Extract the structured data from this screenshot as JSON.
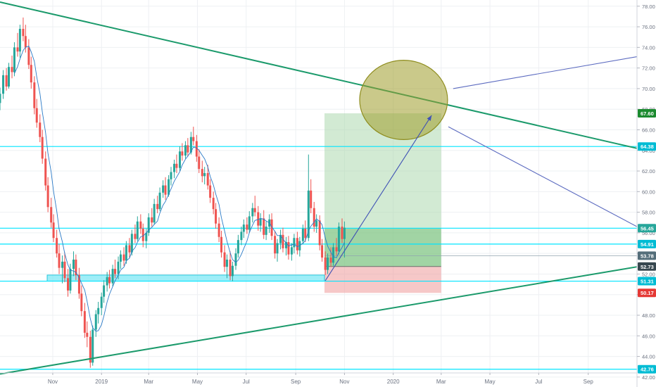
{
  "chart_data": {
    "type": "candlestick",
    "title": "",
    "xlabel": "",
    "ylabel": "",
    "ylim": [
      42.4,
      78.6
    ],
    "grid": true,
    "y_ticks": [
      "78.00",
      "76.00",
      "74.00",
      "72.00",
      "70.00",
      "68.00",
      "66.00",
      "64.00",
      "62.00",
      "60.00",
      "58.00",
      "56.00",
      "54.00",
      "52.00",
      "50.00",
      "48.00",
      "46.00",
      "44.00",
      "42.00"
    ],
    "x_ticks": [
      {
        "label": "Nov",
        "date": "2018-11-01"
      },
      {
        "label": "2019",
        "date": "2019-01-01"
      },
      {
        "label": "Mar",
        "date": "2019-03-01"
      },
      {
        "label": "May",
        "date": "2019-05-01"
      },
      {
        "label": "Jul",
        "date": "2019-07-01"
      },
      {
        "label": "Sep",
        "date": "2019-09-01"
      },
      {
        "label": "Nov",
        "date": "2019-11-01"
      },
      {
        "label": "2020",
        "date": "2020-01-01"
      },
      {
        "label": "Mar",
        "date": "2020-03-01"
      },
      {
        "label": "May",
        "date": "2020-05-01"
      },
      {
        "label": "Jul",
        "date": "2020-07-01"
      },
      {
        "label": "Sep",
        "date": "2020-09-01"
      }
    ],
    "price_labels": [
      {
        "value": 67.6,
        "text": "67.60",
        "color": "#1b8a2f"
      },
      {
        "value": 64.38,
        "text": "64.38",
        "color": "#00bcd4"
      },
      {
        "value": 56.45,
        "text": "56.45",
        "color": "#26a69a"
      },
      {
        "value": 54.91,
        "text": "54.91",
        "color": "#00bcd4"
      },
      {
        "value": 53.78,
        "text": "53.78",
        "color": "#546e7a"
      },
      {
        "value": 52.73,
        "text": "52.73",
        "color": "#37474f"
      },
      {
        "value": 51.31,
        "text": "51.31",
        "color": "#00bcd4"
      },
      {
        "value": 50.17,
        "text": "50.17",
        "color": "#e53935"
      },
      {
        "value": 42.76,
        "text": "42.76",
        "color": "#00bcd4"
      }
    ],
    "horizontal_levels": [
      64.38,
      56.45,
      54.91,
      51.31,
      42.76
    ],
    "long_position": {
      "start_date": "2019-10-07",
      "end_date": "2020-03-01",
      "entry": 52.73,
      "target": 67.6,
      "stop": 50.17,
      "current": 56.45,
      "trace_to": 53.78
    },
    "support_zone": {
      "start_date": "2018-10-25",
      "end_date": "2019-10-07",
      "low": 51.31,
      "high": 51.9
    },
    "trendlines": [
      {
        "name": "",
        "color": "#1b9a6b",
        "points": [
          [
            "2018-08-27",
            78.4
          ],
          [
            "2020-11-01",
            64.2
          ]
        ]
      },
      {
        "name": "",
        "color": "#1b9a6b",
        "points": [
          [
            "2018-08-27",
            42.3
          ],
          [
            "2020-11-01",
            52.7
          ]
        ]
      }
    ],
    "arrow": {
      "from": [
        "2019-10-08",
        51.35
      ],
      "to": [
        "2020-02-18",
        67.4
      ],
      "color": "#3f51b5"
    },
    "ellipse": {
      "center": [
        "2020-01-14",
        68.9
      ],
      "rx_days": 55,
      "ry_value": 3.85,
      "fill": "#9e9c2a",
      "opacity": 0.55
    },
    "projection_lines": [
      {
        "from": [
          "2020-03-16",
          70.0
        ],
        "to": [
          "2020-11-01",
          73.1
        ]
      },
      {
        "from": [
          "2020-03-10",
          66.3
        ],
        "to": [
          "2020-11-01",
          56.6
        ]
      }
    ],
    "colors": {
      "up": "#26a69a",
      "down": "#ef5350",
      "ma": "#2a7ac7",
      "level": "#00e5ff",
      "zone_fill": "#7ee8f5",
      "target_fill": "#a5d6a7",
      "target_inner": "#66bb6a",
      "stop_fill": "#ef9a9a"
    },
    "ohlc": [
      [
        "2018-08-27",
        68.6,
        70.1,
        67.9,
        69.5
      ],
      [
        "2018-08-31",
        69.5,
        71.8,
        69.0,
        71.3
      ],
      [
        "2018-09-04",
        71.3,
        72.0,
        69.8,
        70.2
      ],
      [
        "2018-09-07",
        70.2,
        72.5,
        70.0,
        72.1
      ],
      [
        "2018-09-11",
        72.1,
        73.2,
        71.0,
        71.6
      ],
      [
        "2018-09-14",
        71.6,
        74.5,
        71.2,
        74.0
      ],
      [
        "2018-09-18",
        74.0,
        75.4,
        73.1,
        73.6
      ],
      [
        "2018-09-21",
        73.6,
        76.2,
        73.0,
        75.8
      ],
      [
        "2018-09-25",
        75.8,
        76.9,
        74.6,
        75.1
      ],
      [
        "2018-09-28",
        75.1,
        76.2,
        73.5,
        74.0
      ],
      [
        "2018-10-02",
        74.0,
        74.8,
        71.9,
        72.3
      ],
      [
        "2018-10-05",
        72.3,
        73.1,
        70.0,
        70.6
      ],
      [
        "2018-10-09",
        70.6,
        71.2,
        67.5,
        68.1
      ],
      [
        "2018-10-12",
        68.1,
        69.0,
        66.2,
        66.7
      ],
      [
        "2018-10-16",
        66.7,
        67.5,
        64.8,
        65.3
      ],
      [
        "2018-10-19",
        65.3,
        66.0,
        62.7,
        63.2
      ],
      [
        "2018-10-23",
        63.2,
        63.9,
        60.1,
        60.6
      ],
      [
        "2018-10-26",
        60.6,
        61.4,
        58.0,
        58.5
      ],
      [
        "2018-10-30",
        58.5,
        59.4,
        56.5,
        57.0
      ],
      [
        "2018-11-02",
        57.0,
        57.8,
        55.1,
        55.5
      ],
      [
        "2018-11-06",
        55.5,
        56.3,
        53.6,
        54.0
      ],
      [
        "2018-11-09",
        54.0,
        54.9,
        52.0,
        52.6
      ],
      [
        "2018-11-13",
        52.6,
        53.8,
        51.1,
        53.2
      ],
      [
        "2018-11-16",
        53.2,
        54.1,
        51.2,
        51.6
      ],
      [
        "2018-11-20",
        51.6,
        52.5,
        49.8,
        50.4
      ],
      [
        "2018-11-23",
        50.4,
        53.0,
        50.1,
        52.5
      ],
      [
        "2018-11-27",
        52.5,
        54.2,
        51.8,
        53.4
      ],
      [
        "2018-11-30",
        53.4,
        53.9,
        51.4,
        51.9
      ],
      [
        "2018-12-04",
        51.9,
        52.6,
        49.6,
        50.1
      ],
      [
        "2018-12-07",
        50.1,
        50.9,
        47.9,
        48.4
      ],
      [
        "2018-12-11",
        48.4,
        49.2,
        45.8,
        46.3
      ],
      [
        "2018-12-14",
        46.3,
        47.4,
        44.9,
        45.9
      ],
      [
        "2018-12-18",
        45.9,
        46.5,
        42.9,
        43.4
      ],
      [
        "2018-12-21",
        43.4,
        47.0,
        43.1,
        46.6
      ],
      [
        "2018-12-25",
        46.6,
        48.5,
        45.9,
        48.1
      ],
      [
        "2018-12-28",
        48.1,
        49.3,
        47.2,
        48.7
      ],
      [
        "2019-01-01",
        48.7,
        50.2,
        48.0,
        49.8
      ],
      [
        "2019-01-04",
        49.8,
        51.4,
        49.2,
        50.9
      ],
      [
        "2019-01-08",
        50.9,
        52.2,
        50.3,
        51.7
      ],
      [
        "2019-01-11",
        51.7,
        52.4,
        50.6,
        51.1
      ],
      [
        "2019-01-15",
        51.1,
        52.9,
        50.8,
        52.5
      ],
      [
        "2019-01-18",
        52.5,
        53.4,
        51.6,
        52.0
      ],
      [
        "2019-01-22",
        52.0,
        53.7,
        51.5,
        53.2
      ],
      [
        "2019-01-25",
        53.2,
        54.3,
        52.5,
        53.9
      ],
      [
        "2019-01-29",
        53.9,
        54.6,
        52.8,
        53.3
      ],
      [
        "2019-02-01",
        53.3,
        55.2,
        53.0,
        54.8
      ],
      [
        "2019-02-05",
        54.8,
        55.5,
        53.6,
        54.1
      ],
      [
        "2019-02-08",
        54.1,
        56.3,
        53.8,
        55.9
      ],
      [
        "2019-02-12",
        55.9,
        56.8,
        55.0,
        55.4
      ],
      [
        "2019-02-15",
        55.4,
        57.6,
        55.2,
        57.1
      ],
      [
        "2019-02-19",
        57.1,
        57.8,
        55.9,
        56.4
      ],
      [
        "2019-02-22",
        56.4,
        56.9,
        54.6,
        55.2
      ],
      [
        "2019-02-26",
        55.2,
        56.4,
        54.5,
        56.0
      ],
      [
        "2019-03-01",
        56.0,
        57.9,
        55.7,
        57.5
      ],
      [
        "2019-03-05",
        57.5,
        58.4,
        56.6,
        57.0
      ],
      [
        "2019-03-08",
        57.0,
        59.3,
        56.8,
        58.8
      ],
      [
        "2019-03-12",
        58.8,
        59.6,
        57.9,
        58.3
      ],
      [
        "2019-03-15",
        58.3,
        60.4,
        58.1,
        59.9
      ],
      [
        "2019-03-19",
        59.9,
        61.1,
        59.4,
        60.6
      ],
      [
        "2019-03-22",
        60.6,
        61.4,
        59.2,
        59.7
      ],
      [
        "2019-03-26",
        59.7,
        61.6,
        59.5,
        61.2
      ],
      [
        "2019-03-29",
        61.2,
        62.4,
        60.6,
        61.9
      ],
      [
        "2019-04-02",
        61.9,
        63.1,
        61.3,
        62.7
      ],
      [
        "2019-04-05",
        62.7,
        63.6,
        61.8,
        62.3
      ],
      [
        "2019-04-09",
        62.3,
        64.4,
        62.0,
        63.9
      ],
      [
        "2019-04-12",
        63.9,
        64.7,
        63.0,
        63.5
      ],
      [
        "2019-04-16",
        63.5,
        64.9,
        63.2,
        64.5
      ],
      [
        "2019-04-19",
        64.5,
        65.2,
        63.4,
        63.8
      ],
      [
        "2019-04-23",
        63.8,
        65.8,
        63.6,
        65.3
      ],
      [
        "2019-04-26",
        65.3,
        66.3,
        64.5,
        64.9
      ],
      [
        "2019-04-30",
        64.9,
        65.5,
        62.9,
        63.4
      ],
      [
        "2019-05-03",
        63.4,
        64.1,
        61.8,
        62.2
      ],
      [
        "2019-05-07",
        62.2,
        63.0,
        60.9,
        61.5
      ],
      [
        "2019-05-10",
        61.5,
        62.4,
        60.7,
        61.8
      ],
      [
        "2019-05-14",
        61.8,
        62.6,
        60.2,
        60.6
      ],
      [
        "2019-05-17",
        60.6,
        61.2,
        58.9,
        59.4
      ],
      [
        "2019-05-21",
        59.4,
        60.0,
        57.8,
        58.3
      ],
      [
        "2019-05-24",
        58.3,
        58.9,
        56.4,
        56.9
      ],
      [
        "2019-05-28",
        56.9,
        57.5,
        55.1,
        55.6
      ],
      [
        "2019-05-31",
        55.6,
        56.2,
        53.6,
        54.1
      ],
      [
        "2019-06-04",
        54.1,
        54.8,
        52.2,
        52.7
      ],
      [
        "2019-06-07",
        52.7,
        53.9,
        51.6,
        53.4
      ],
      [
        "2019-06-11",
        53.4,
        54.2,
        51.4,
        51.8
      ],
      [
        "2019-06-14",
        51.8,
        53.2,
        51.3,
        52.8
      ],
      [
        "2019-06-18",
        52.8,
        54.5,
        52.4,
        54.0
      ],
      [
        "2019-06-21",
        54.0,
        55.8,
        53.6,
        55.3
      ],
      [
        "2019-06-25",
        55.3,
        56.6,
        54.8,
        56.1
      ],
      [
        "2019-06-28",
        56.1,
        57.3,
        55.5,
        56.8
      ],
      [
        "2019-07-02",
        56.8,
        57.5,
        55.9,
        56.3
      ],
      [
        "2019-07-05",
        56.3,
        58.1,
        56.0,
        57.6
      ],
      [
        "2019-07-09",
        57.6,
        58.9,
        57.0,
        58.4
      ],
      [
        "2019-07-12",
        58.4,
        59.6,
        57.6,
        58.0
      ],
      [
        "2019-07-16",
        58.0,
        58.6,
        56.2,
        56.7
      ],
      [
        "2019-07-19",
        56.7,
        57.9,
        56.1,
        57.4
      ],
      [
        "2019-07-23",
        57.4,
        58.2,
        55.4,
        55.8
      ],
      [
        "2019-07-26",
        55.8,
        57.1,
        55.3,
        56.6
      ],
      [
        "2019-07-30",
        56.6,
        57.8,
        56.0,
        57.3
      ],
      [
        "2019-08-02",
        57.3,
        57.9,
        55.3,
        55.7
      ],
      [
        "2019-08-06",
        55.7,
        56.2,
        53.5,
        54.0
      ],
      [
        "2019-08-09",
        54.0,
        55.4,
        53.2,
        55.0
      ],
      [
        "2019-08-13",
        55.0,
        56.3,
        54.4,
        55.8
      ],
      [
        "2019-08-16",
        55.8,
        56.5,
        54.1,
        54.5
      ],
      [
        "2019-08-20",
        54.5,
        55.6,
        53.8,
        55.1
      ],
      [
        "2019-08-23",
        55.1,
        55.7,
        53.4,
        53.9
      ],
      [
        "2019-08-27",
        53.9,
        55.0,
        53.3,
        54.6
      ],
      [
        "2019-08-30",
        54.6,
        55.9,
        54.0,
        55.5
      ],
      [
        "2019-09-03",
        55.5,
        56.1,
        53.9,
        54.3
      ],
      [
        "2019-09-06",
        54.3,
        55.6,
        53.7,
        55.2
      ],
      [
        "2019-09-10",
        55.2,
        56.8,
        54.9,
        56.4
      ],
      [
        "2019-09-13",
        56.4,
        57.2,
        55.1,
        55.5
      ],
      [
        "2019-09-17",
        55.5,
        63.6,
        55.2,
        60.1
      ],
      [
        "2019-09-20",
        60.1,
        61.2,
        57.9,
        58.4
      ],
      [
        "2019-09-24",
        58.4,
        59.0,
        56.1,
        56.6
      ],
      [
        "2019-09-27",
        56.6,
        57.8,
        56.0,
        57.2
      ],
      [
        "2019-10-01",
        57.2,
        57.7,
        54.3,
        54.8
      ],
      [
        "2019-10-04",
        54.8,
        55.4,
        53.2,
        53.6
      ],
      [
        "2019-10-08",
        53.6,
        54.2,
        51.9,
        52.4
      ],
      [
        "2019-10-11",
        52.4,
        54.0,
        52.0,
        53.6
      ],
      [
        "2019-10-15",
        53.6,
        54.6,
        52.7,
        53.1
      ],
      [
        "2019-10-18",
        53.1,
        55.0,
        52.8,
        54.6
      ],
      [
        "2019-10-22",
        54.6,
        55.5,
        53.8,
        54.2
      ],
      [
        "2019-10-25",
        54.2,
        57.0,
        53.9,
        56.6
      ],
      [
        "2019-10-29",
        56.6,
        57.4,
        55.0,
        55.4
      ],
      [
        "2019-11-01",
        55.4,
        57.1,
        53.6,
        56.5
      ]
    ]
  }
}
